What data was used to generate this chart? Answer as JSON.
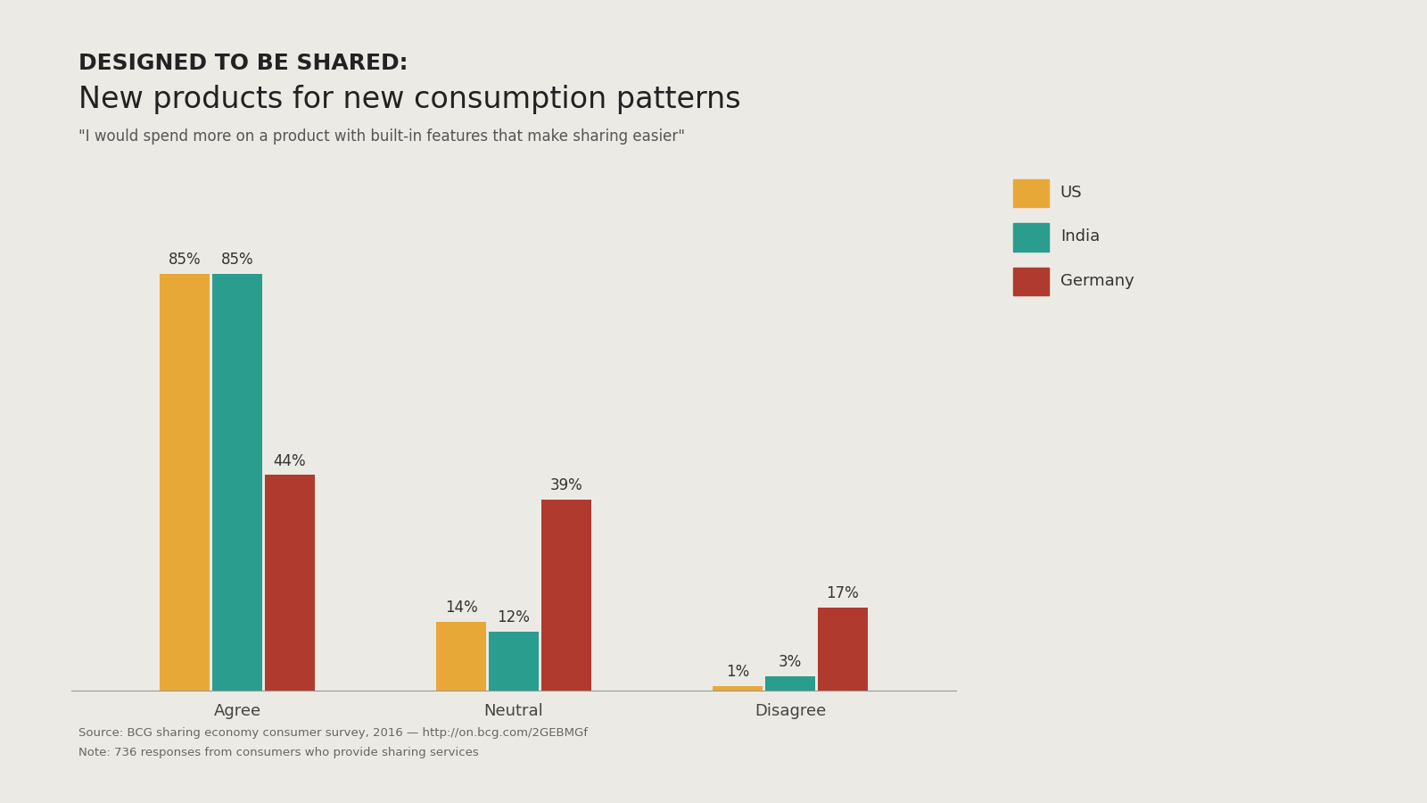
{
  "title_line1": "DESIGNED TO BE SHARED:",
  "title_line2": "New products for new consumption patterns",
  "subtitle": "\"I would spend more on a product with built-in features that make sharing easier\"",
  "source_line1": "Source: BCG sharing economy consumer survey, 2016 — http://on.bcg.com/2GEBMGf",
  "source_line2": "Note: 736 responses from consumers who provide sharing services",
  "categories": [
    "Agree",
    "Neutral",
    "Disagree"
  ],
  "series": [
    {
      "name": "US",
      "color": "#E8A838",
      "values": [
        85,
        14,
        1
      ]
    },
    {
      "name": "India",
      "color": "#2A9D8F",
      "values": [
        85,
        12,
        3
      ]
    },
    {
      "name": "Germany",
      "color": "#B03A2E",
      "values": [
        44,
        39,
        17
      ]
    }
  ],
  "background_color": "#ECEAE4",
  "ylim": [
    0,
    95
  ],
  "bar_width": 0.18,
  "title_line1_fontsize": 18,
  "title_line2_fontsize": 24,
  "subtitle_fontsize": 12,
  "tick_fontsize": 13,
  "legend_fontsize": 13,
  "source_fontsize": 9.5,
  "value_label_fontsize": 12
}
